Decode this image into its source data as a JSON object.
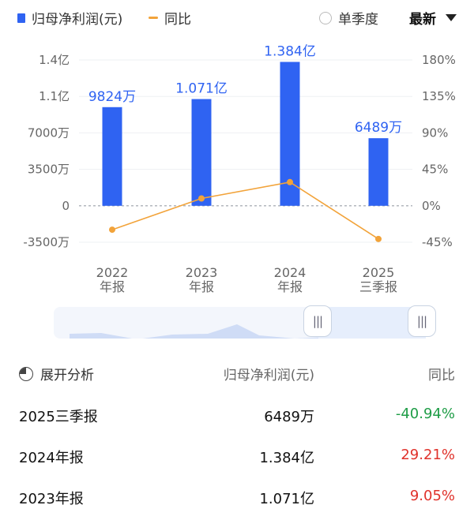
{
  "legend": {
    "primary_label": "归母净利润(元)",
    "secondary_label": "同比",
    "bar_color": "#2f63f2",
    "line_color": "#f2a33a"
  },
  "controls": {
    "toggle_label": "单季度",
    "sort_label": "最新",
    "slider_handle_glyph": "|||"
  },
  "chart_data": {
    "type": "bar",
    "categories": [
      [
        "2022",
        "年报"
      ],
      [
        "2023",
        "年报"
      ],
      [
        "2024",
        "年报"
      ],
      [
        "2025",
        "三季报"
      ]
    ],
    "series": [
      {
        "name": "归母净利润(元)",
        "type": "bar",
        "axis": "left",
        "values": [
          98240000,
          107100000,
          138400000,
          64890000
        ],
        "data_labels": [
          "9824万",
          "1.071亿",
          "1.384亿",
          "6489万"
        ]
      },
      {
        "name": "同比",
        "type": "line",
        "axis": "right",
        "values": [
          -29.5,
          9.05,
          29.21,
          -40.94
        ]
      }
    ],
    "y_left": {
      "ticks": [
        140000000,
        110000000,
        70000000,
        35000000,
        0,
        -35000000
      ],
      "tick_labels": [
        "1.4亿",
        "1.1亿",
        "7000万",
        "3500万",
        "0",
        "-3500万"
      ]
    },
    "y_right": {
      "ticks": [
        180,
        135,
        90,
        45,
        0,
        -45
      ],
      "tick_labels": [
        "180%",
        "135%",
        "90%",
        "45%",
        "0%",
        "-45%"
      ]
    }
  },
  "table": {
    "header": {
      "col1": "展开分析",
      "col2": "归母净利润(元)",
      "col3": "同比"
    },
    "rows": [
      {
        "period": "2025三季报",
        "value": "6489万",
        "yoy": "-40.94%",
        "color": "#1f9d47"
      },
      {
        "period": "2024年报",
        "value": "1.384亿",
        "yoy": "29.21%",
        "color": "#e0322b"
      },
      {
        "period": "2023年报",
        "value": "1.071亿",
        "yoy": "9.05%",
        "color": "#e0322b"
      }
    ]
  }
}
